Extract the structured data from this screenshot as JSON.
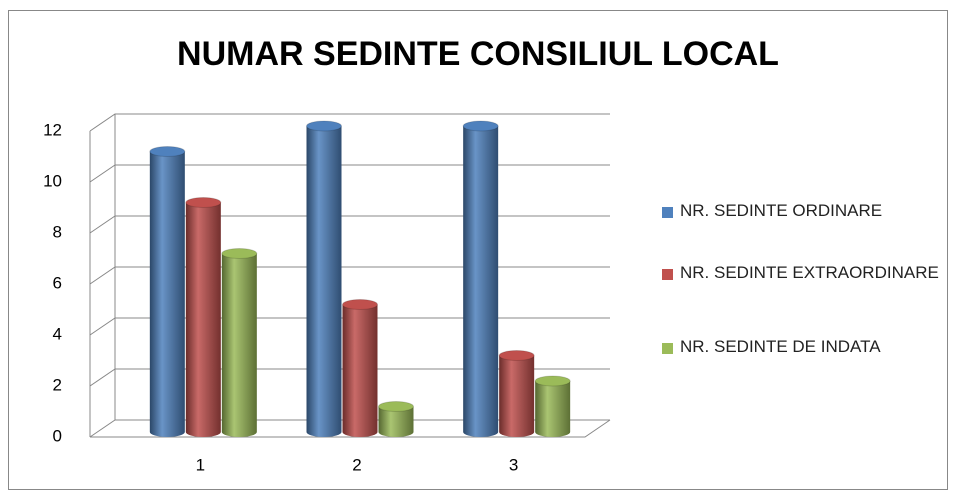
{
  "chart_data": {
    "type": "bar3d",
    "title": "NUMAR SEDINTE CONSILIUL LOCAL",
    "categories": [
      "1",
      "2",
      "3"
    ],
    "series": [
      {
        "name": "NR. SEDINTE ORDINARE",
        "color": "#4f81bd",
        "values": [
          11,
          12,
          12
        ]
      },
      {
        "name": "NR. SEDINTE EXTRAORDINARE",
        "color": "#c0504d",
        "values": [
          9,
          5,
          3
        ]
      },
      {
        "name": "NR. SEDINTE DE INDATA",
        "color": "#9bbb59",
        "values": [
          7,
          1,
          2
        ]
      }
    ],
    "ylim": [
      0,
      12
    ],
    "yticks": [
      0,
      2,
      4,
      6,
      8,
      10,
      12
    ],
    "grid": true,
    "legend": "right"
  }
}
